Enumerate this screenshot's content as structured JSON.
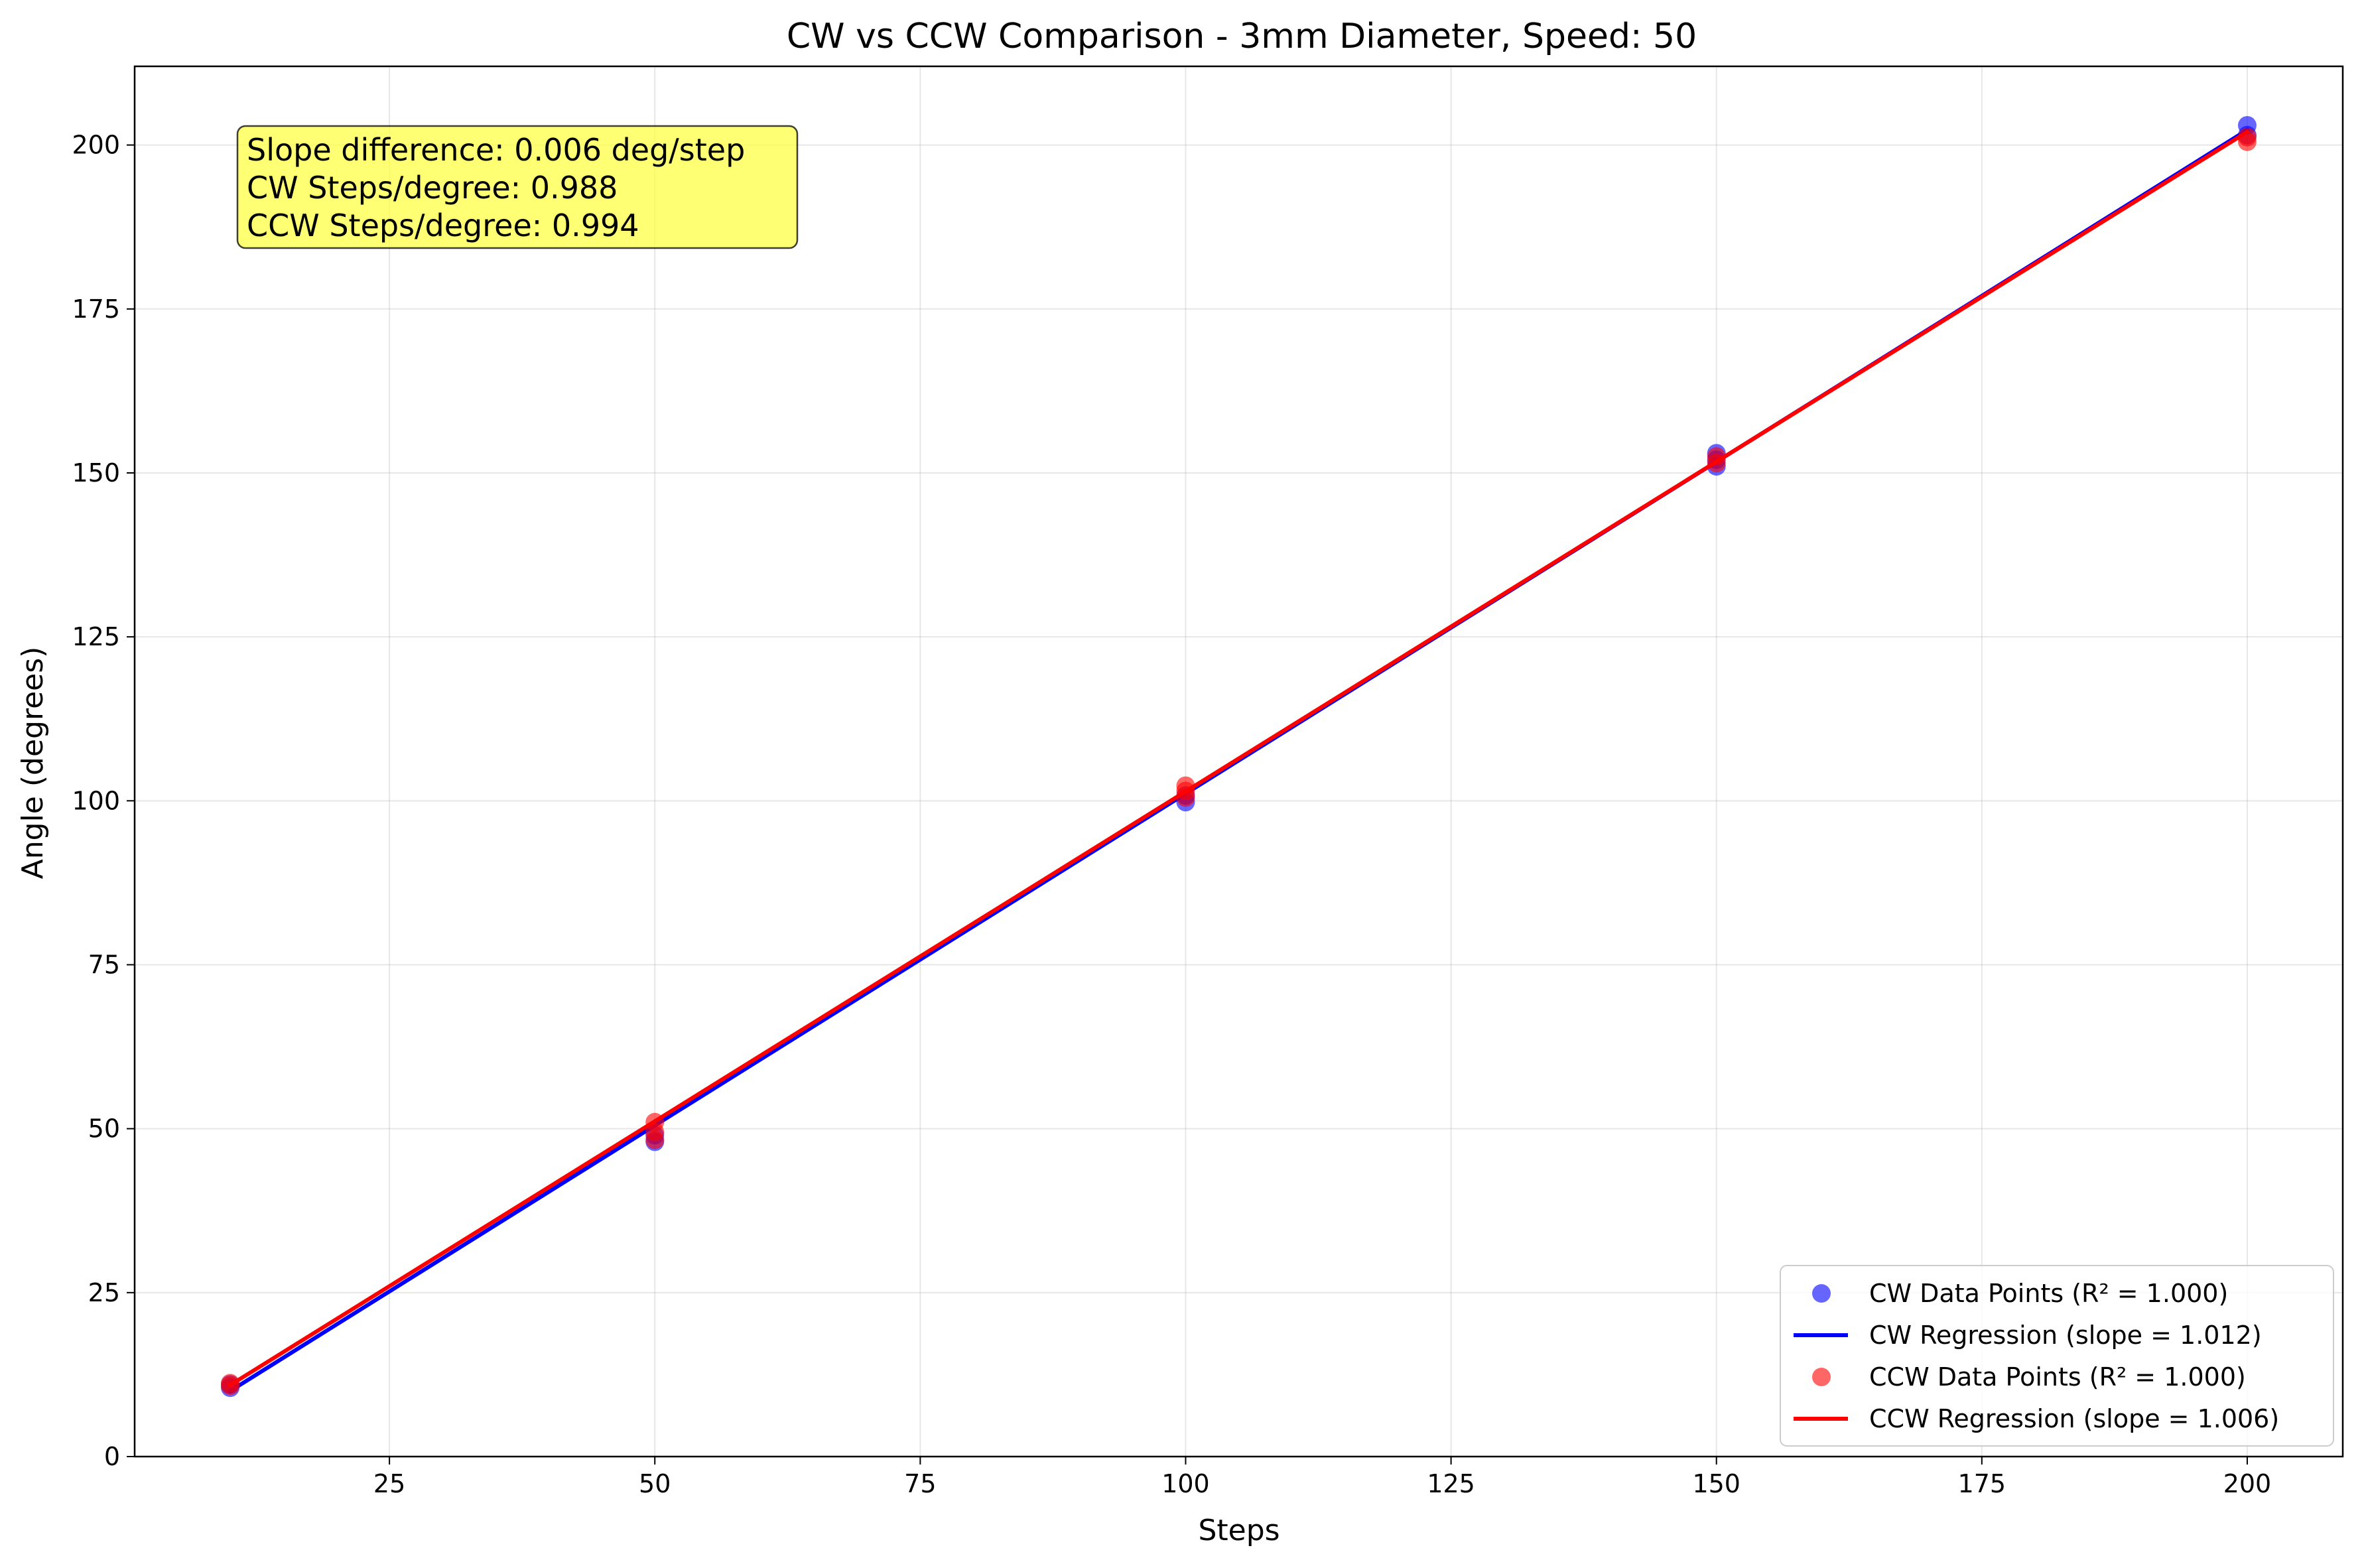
{
  "chart_data": {
    "type": "scatter",
    "title": "CW vs CCW Comparison - 3mm Diameter, Speed: 50",
    "xlabel": "Steps",
    "ylabel": "Angle (degrees)",
    "xlim": [
      1,
      209
    ],
    "ylim": [
      0,
      212
    ],
    "xticks": [
      25,
      50,
      75,
      100,
      125,
      150,
      175,
      200
    ],
    "yticks": [
      0,
      25,
      50,
      75,
      100,
      125,
      150,
      175,
      200
    ],
    "grid": true,
    "legend_position": "lower-right",
    "series": [
      {
        "name": "CW Data Points (R² = 1.000)",
        "kind": "scatter",
        "color": "#0000ff",
        "points": [
          [
            10,
            10.5
          ],
          [
            10,
            11.0
          ],
          [
            50,
            48.0
          ],
          [
            50,
            49.0
          ],
          [
            100,
            99.8
          ],
          [
            100,
            100.8
          ],
          [
            150,
            151.0
          ],
          [
            150,
            152.0
          ],
          [
            150,
            153.0
          ],
          [
            200,
            201.5
          ],
          [
            200,
            203.0
          ]
        ]
      },
      {
        "name": "CW Regression (slope = 1.012)",
        "kind": "line",
        "color": "#0000ff",
        "points": [
          [
            10,
            10.0
          ],
          [
            200,
            202.3
          ]
        ]
      },
      {
        "name": "CCW Data Points (R² = 1.000)",
        "kind": "scatter",
        "color": "#ff0000",
        "points": [
          [
            10,
            10.8
          ],
          [
            10,
            11.2
          ],
          [
            50,
            48.3
          ],
          [
            50,
            49.5
          ],
          [
            50,
            51.0
          ],
          [
            100,
            100.5
          ],
          [
            100,
            101.5
          ],
          [
            100,
            102.3
          ],
          [
            150,
            151.5
          ],
          [
            150,
            152.5
          ],
          [
            200,
            200.5
          ],
          [
            200,
            201.2
          ]
        ]
      },
      {
        "name": "CCW Regression (slope = 1.006)",
        "kind": "line",
        "color": "#ff0000",
        "points": [
          [
            10,
            10.9
          ],
          [
            200,
            202.0
          ]
        ]
      }
    ],
    "annotation": {
      "lines": [
        "Slope difference: 0.006 deg/step",
        "CW Steps/degree: 0.988",
        "CCW Steps/degree: 0.994"
      ],
      "background": "#ffff44"
    }
  }
}
